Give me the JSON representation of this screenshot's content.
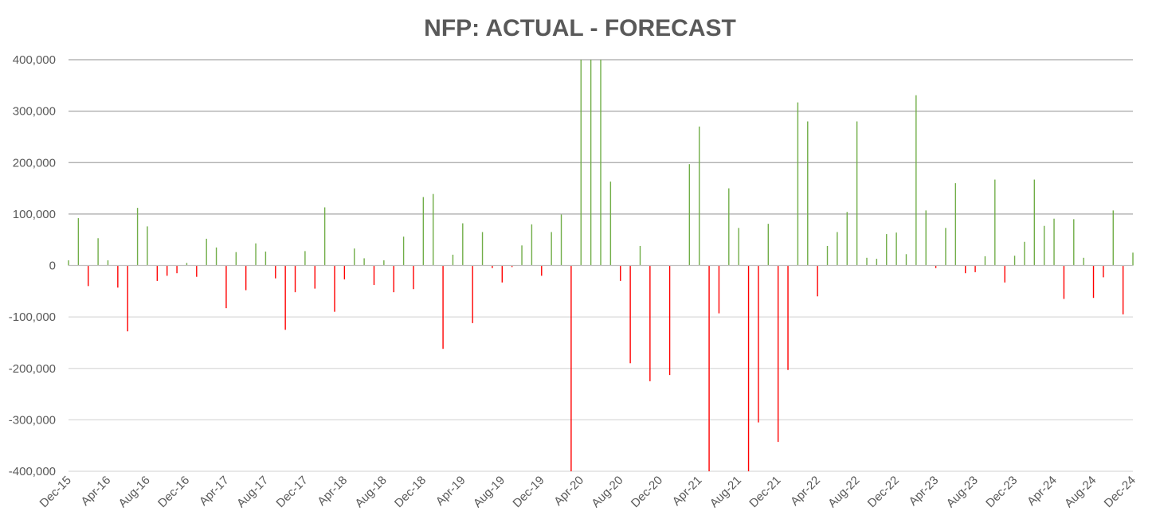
{
  "chart_data": {
    "type": "bar",
    "title": "NFP: ACTUAL - FORECAST",
    "xlabel": "",
    "ylabel": "",
    "ylim": [
      -400000,
      400000
    ],
    "yticks": [
      400000,
      300000,
      200000,
      100000,
      0,
      -100000,
      -200000,
      -300000,
      -400000
    ],
    "ytick_labels": [
      "400,000",
      "300,000",
      "200,000",
      "100,000",
      "0",
      "-100,000",
      "-200,000",
      "-300,000",
      "-400,000"
    ],
    "xtick_labels": [
      "Dec-15",
      "Apr-16",
      "Aug-16",
      "Dec-16",
      "Apr-17",
      "Aug-17",
      "Dec-17",
      "Apr-18",
      "Aug-18",
      "Dec-18",
      "Apr-19",
      "Aug-19",
      "Dec-19",
      "Apr-20",
      "Aug-20",
      "Dec-20",
      "Apr-21",
      "Aug-21",
      "Dec-21",
      "Apr-22",
      "Aug-22",
      "Dec-22",
      "Apr-23",
      "Aug-23",
      "Dec-23",
      "Apr-24",
      "Aug-24",
      "Dec-24"
    ],
    "gridlines": true,
    "legend": "none",
    "colors": {
      "positive": "#70ad47",
      "negative": "#ff0000",
      "grid": "#d9d9d9",
      "text": "#595959"
    },
    "series": [
      {
        "name": "Actual - Forecast",
        "start": "Dec-15",
        "values": [
          10000,
          92000,
          -40000,
          53000,
          10000,
          -43000,
          -128000,
          112000,
          76000,
          -30000,
          -20000,
          -15000,
          5000,
          -22000,
          52000,
          35000,
          -83000,
          26000,
          -48000,
          43000,
          27000,
          -25000,
          -125000,
          -52000,
          28000,
          -45000,
          113000,
          -90000,
          -27000,
          33000,
          14000,
          -38000,
          10000,
          -52000,
          56000,
          -46000,
          133000,
          139000,
          -162000,
          21000,
          82000,
          -112000,
          65000,
          -5000,
          -33000,
          -3000,
          39000,
          80000,
          -20000,
          65000,
          99000,
          -400000,
          400000,
          400000,
          400000,
          163000,
          -30000,
          -190000,
          38000,
          -225000,
          0,
          -213000,
          0,
          197000,
          270000,
          -400000,
          -93000,
          150000,
          73000,
          -400000,
          -305000,
          81000,
          -343000,
          -203000,
          317000,
          280000,
          -60000,
          38000,
          65000,
          104000,
          280000,
          15000,
          13000,
          61000,
          64000,
          22000,
          331000,
          107000,
          -5000,
          73000,
          160000,
          -15000,
          -13000,
          18000,
          167000,
          -33000,
          19000,
          46000,
          167000,
          77000,
          91000,
          -65000,
          90000,
          15000,
          -63000,
          -23000,
          107000,
          -95000,
          25000
        ]
      }
    ]
  }
}
